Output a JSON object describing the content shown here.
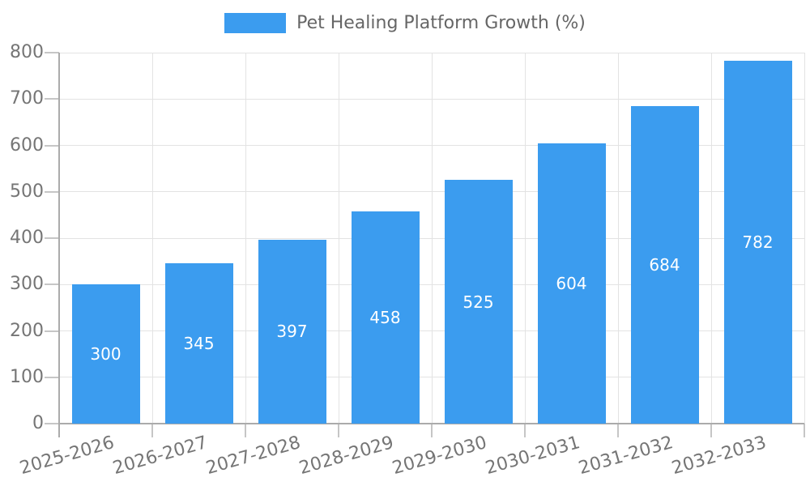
{
  "chart_data": {
    "type": "bar",
    "title": "",
    "legend_entries": [
      "Pet Healing Platform Growth (%)"
    ],
    "legend_position": "top-center",
    "categories": [
      "2025-2026",
      "2026-2027",
      "2027-2028",
      "2028-2029",
      "2029-2030",
      "2030-2031",
      "2031-2032",
      "2032-2033"
    ],
    "series": [
      {
        "name": "Pet Healing Platform Growth (%)",
        "values": [
          300,
          345,
          397,
          458,
          525,
          604,
          684,
          782
        ]
      }
    ],
    "value_labels_position": "inside-center",
    "xlabel": "",
    "ylabel": "",
    "ylim": [
      0,
      800
    ],
    "yticks": [
      0,
      100,
      200,
      300,
      400,
      500,
      600,
      700,
      800
    ],
    "grid": true,
    "x_tick_rotation_deg": -16,
    "colors": {
      "bar": "#3B9CEF",
      "value_label": "#FFFFFF",
      "axis_text": "#757575",
      "legend_text": "#666666",
      "grid_line": "#E3E3E3",
      "axis_line": "#ABABAB",
      "tick_line": "#C6C6C6",
      "background": "#FFFFFF"
    }
  }
}
